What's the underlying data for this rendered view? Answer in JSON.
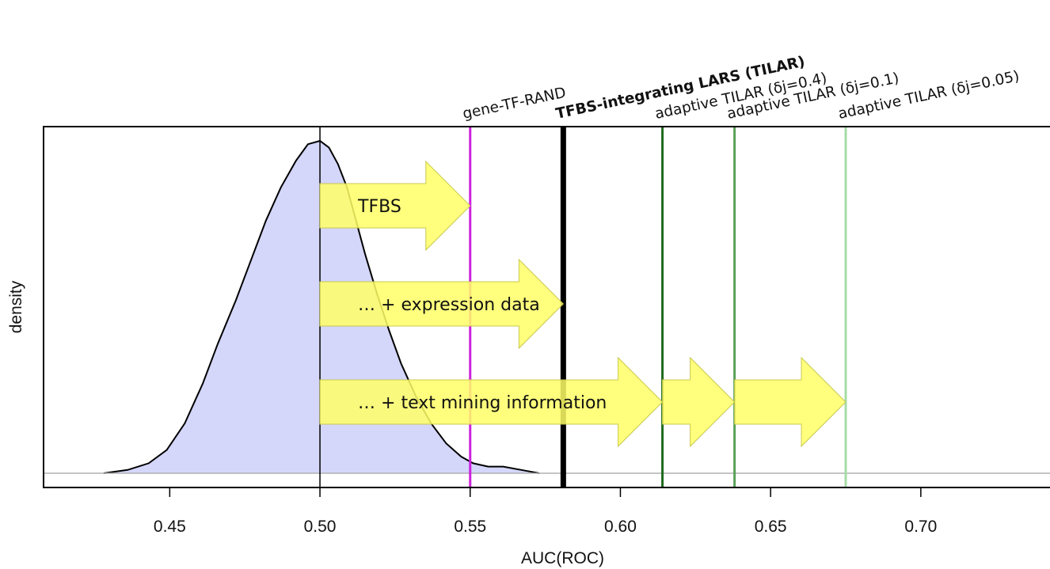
{
  "chart_data": {
    "type": "area",
    "xlabel": "AUC(ROC)",
    "ylabel": "density",
    "xlim": [
      0.408,
      0.743
    ],
    "x_ticks": [
      "0.45",
      "0.50",
      "0.55",
      "0.60",
      "0.65",
      "0.70"
    ],
    "x_tick_values": [
      0.45,
      0.5,
      0.55,
      0.6,
      0.65,
      0.7
    ],
    "grid": false,
    "density": {
      "fill": "#d4d6fa",
      "x": [
        0.428,
        0.436,
        0.443,
        0.449,
        0.455,
        0.461,
        0.466,
        0.472,
        0.477,
        0.482,
        0.487,
        0.492,
        0.496,
        0.5,
        0.503,
        0.506,
        0.509,
        0.512,
        0.515,
        0.519,
        0.523,
        0.527,
        0.532,
        0.537,
        0.542,
        0.547,
        0.551,
        0.556,
        0.561,
        0.567,
        0.573
      ],
      "y": [
        0.0,
        0.01,
        0.03,
        0.07,
        0.15,
        0.27,
        0.39,
        0.52,
        0.64,
        0.76,
        0.86,
        0.94,
        0.99,
        1.0,
        0.98,
        0.93,
        0.86,
        0.76,
        0.66,
        0.54,
        0.43,
        0.33,
        0.23,
        0.15,
        0.09,
        0.05,
        0.03,
        0.02,
        0.02,
        0.01,
        0.0
      ]
    },
    "reference_line": {
      "x": 0.5,
      "color": "#000000"
    },
    "vertical_lines": [
      {
        "label": "gene-TF-RAND",
        "x": 0.55,
        "color": "#cc22dd",
        "bold": false
      },
      {
        "label": "TFBS-integrating LARS (TILAR)",
        "x": 0.581,
        "color": "#000000",
        "bold": true
      },
      {
        "label": "adaptive TILAR (δj=0.4)",
        "x": 0.614,
        "color": "#1f6b1f",
        "bold": false
      },
      {
        "label": "adaptive TILAR (δj=0.1)",
        "x": 0.638,
        "color": "#5aa05a",
        "bold": false
      },
      {
        "label": "adaptive TILAR (δj=0.05)",
        "x": 0.675,
        "color": "#a6dca6",
        "bold": false
      }
    ],
    "arrows": [
      {
        "label": "TFBS",
        "from": 0.5,
        "to": 0.55,
        "row": 1
      },
      {
        "label": "… + expression data",
        "from": 0.5,
        "to": 0.581,
        "row": 2
      },
      {
        "label": "… + text mining information",
        "from": 0.5,
        "to": 0.614,
        "row": 3
      },
      {
        "label": "",
        "from": 0.614,
        "to": 0.638,
        "row": 3
      },
      {
        "label": "",
        "from": 0.638,
        "to": 0.675,
        "row": 3
      }
    ],
    "arrow_color": "#ffff66"
  }
}
